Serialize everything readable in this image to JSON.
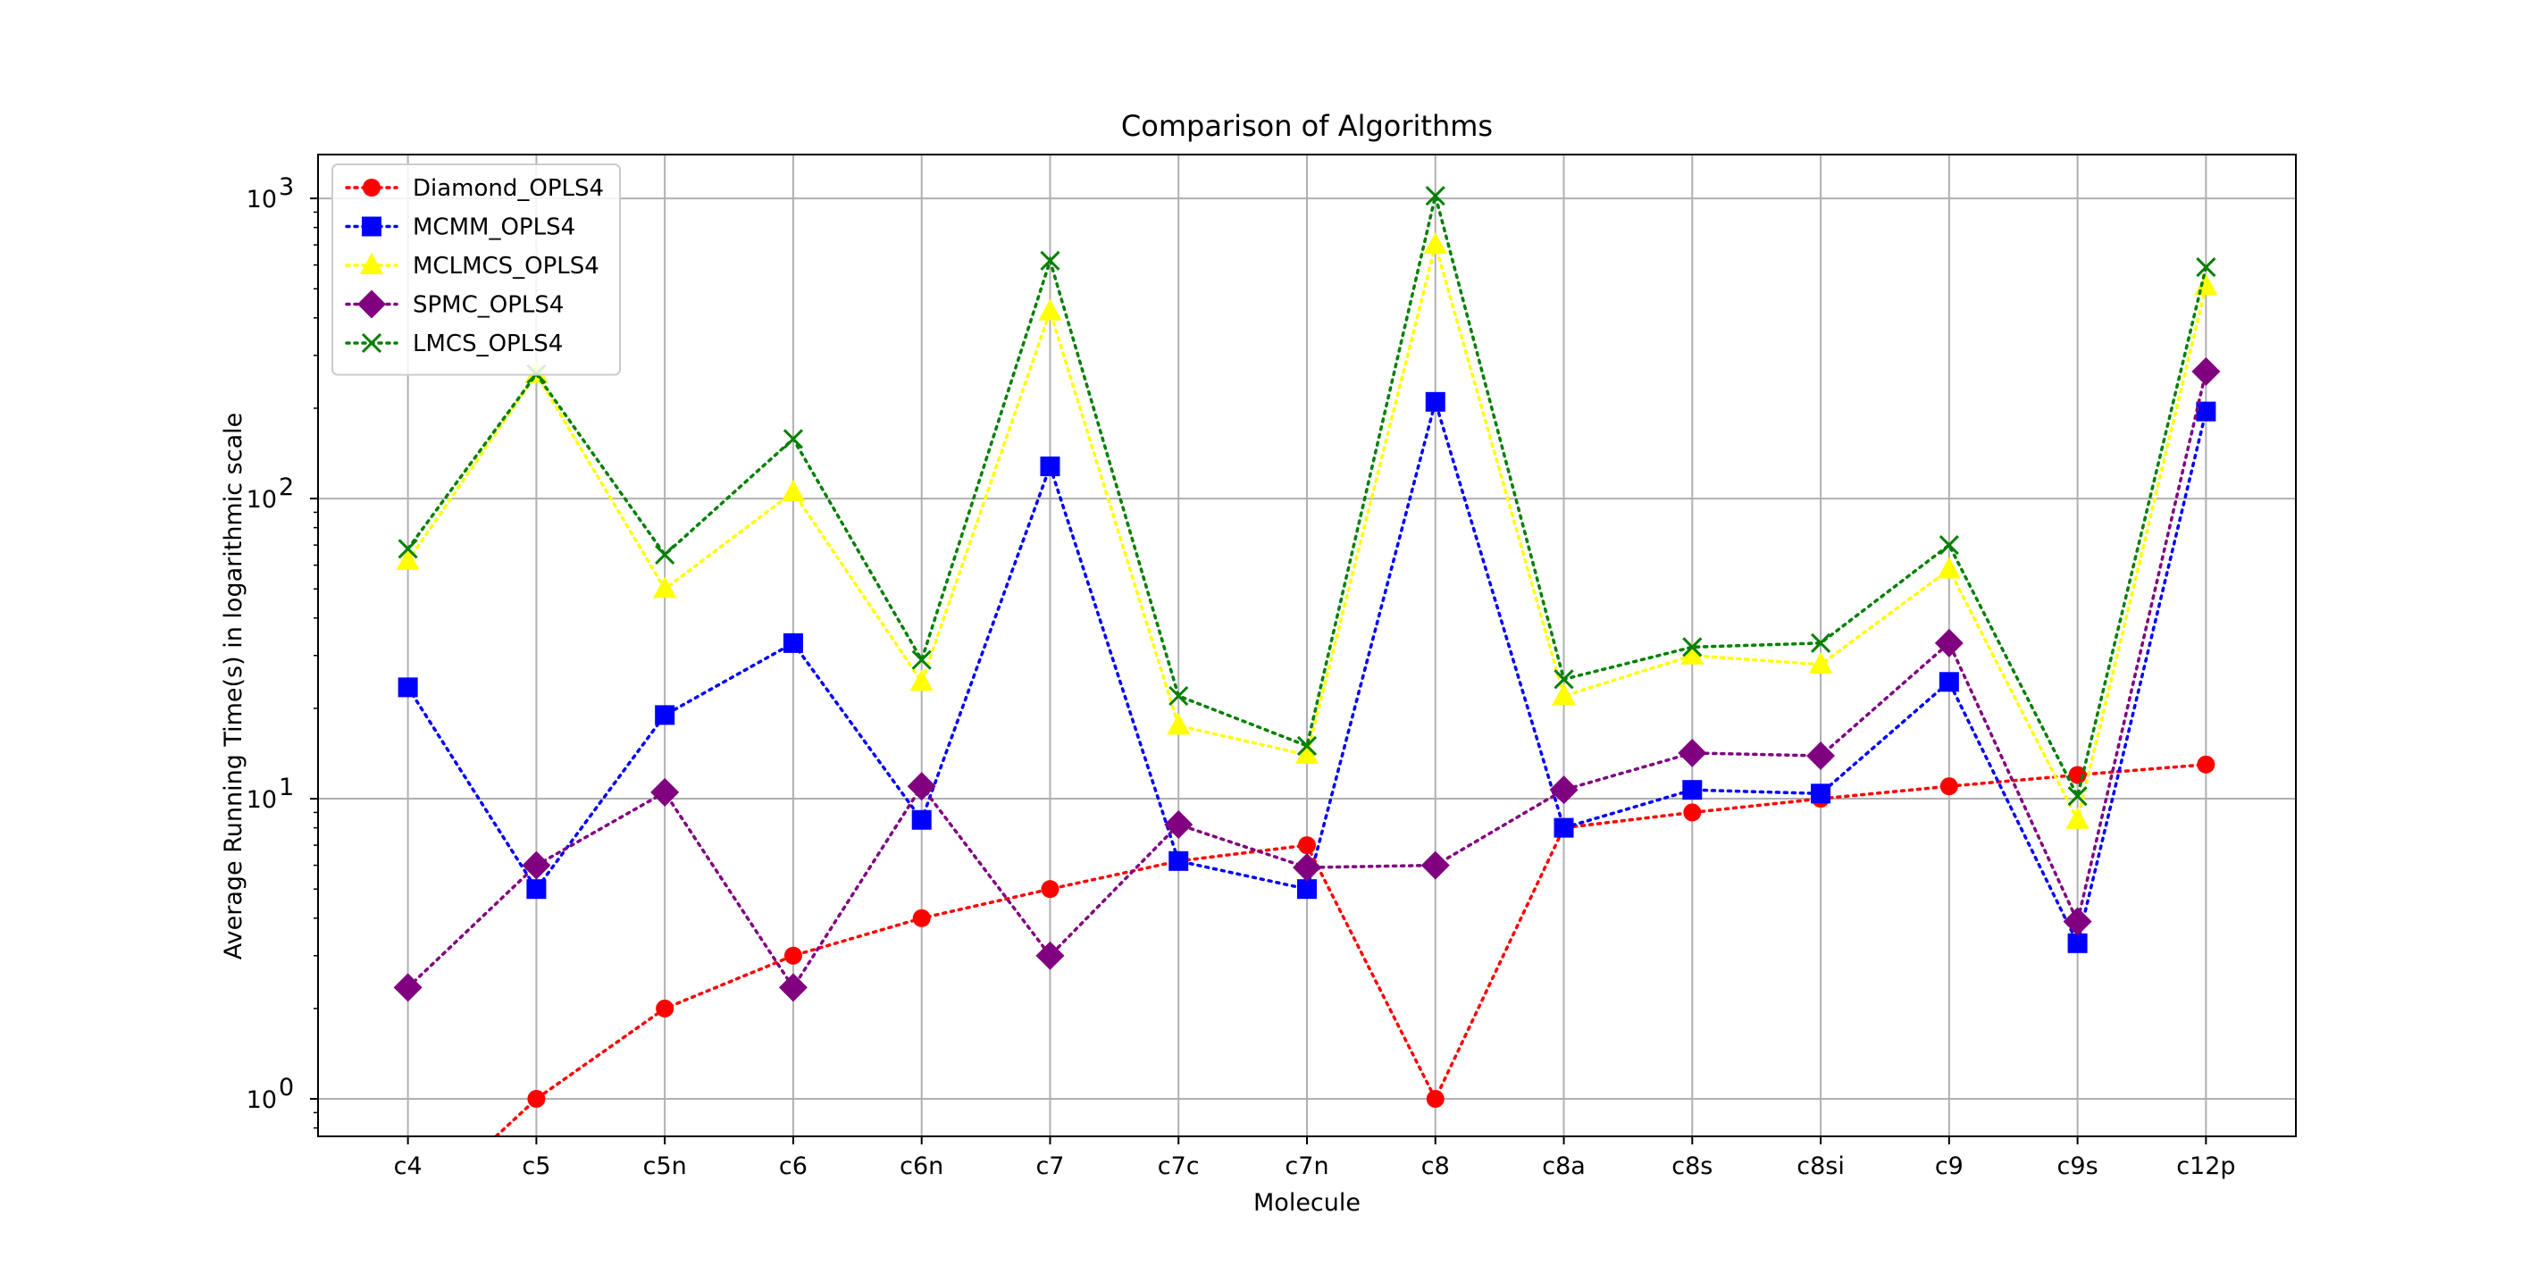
{
  "chart_data": {
    "type": "line",
    "title": "Comparison of Algorithms",
    "xlabel": "Molecule",
    "ylabel": "Average Running Time(s) in logarithmic scale",
    "yscale": "log",
    "ylim": [
      0.75,
      1400
    ],
    "yticks": [
      {
        "value": 1,
        "base": "10",
        "exp": "0"
      },
      {
        "value": 10,
        "base": "10",
        "exp": "1"
      },
      {
        "value": 100,
        "base": "10",
        "exp": "2"
      },
      {
        "value": 1000,
        "base": "10",
        "exp": "3"
      }
    ],
    "grid": true,
    "legend_position": "top-left",
    "categories": [
      "c4",
      "c5",
      "c5n",
      "c6",
      "c6n",
      "c7",
      "c7c",
      "c7n",
      "c8",
      "c8a",
      "c8s",
      "c8si",
      "c9",
      "c9s",
      "c12p"
    ],
    "series": [
      {
        "name": "Diamond_OPLS4",
        "color": "#ff0000",
        "marker": "circle",
        "values": [
          0.4,
          1,
          2,
          3,
          4,
          5,
          6.2,
          7,
          1,
          8,
          9,
          10,
          11,
          12,
          13
        ]
      },
      {
        "name": "MCMM_OPLS4",
        "color": "#0000ff",
        "marker": "square",
        "values": [
          23.5,
          5,
          19,
          33,
          8.5,
          128,
          6.2,
          5,
          210,
          8,
          10.7,
          10.4,
          24.5,
          3.3,
          195
        ]
      },
      {
        "name": "MCLMCS_OPLS4",
        "color": "#ffff00",
        "marker": "triangle",
        "values": [
          62,
          260,
          50,
          105,
          24.5,
          420,
          17.5,
          14,
          700,
          22,
          30,
          28,
          58,
          8.5,
          510
        ]
      },
      {
        "name": "SPMC_OPLS4",
        "color": "#800080",
        "marker": "diamond",
        "values": [
          2.35,
          6,
          10.5,
          2.35,
          11,
          3,
          8.2,
          5.9,
          6,
          10.7,
          14.2,
          13.9,
          33,
          3.9,
          265
        ]
      },
      {
        "name": "LMCS_OPLS4",
        "color": "#008000",
        "marker": "x",
        "values": [
          68,
          260,
          65,
          158,
          29,
          620,
          22,
          15,
          1020,
          25,
          32,
          33,
          70,
          10.2,
          590
        ]
      }
    ]
  }
}
